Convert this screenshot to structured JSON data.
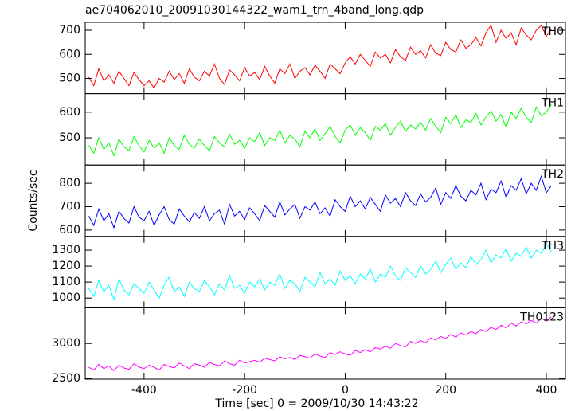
{
  "chart_data": {
    "type": "line",
    "title": "ae704062010_20091030144322_wam1_trn_4band_long.qdp",
    "xlabel": "Time [sec] 0 = 2009/10/30 14:43:22",
    "ylabel": "Counts/sec",
    "xlim": [
      -517,
      438
    ],
    "xticks": [
      -400,
      -200,
      0,
      200,
      400
    ],
    "x": [
      -510,
      -500,
      -490,
      -480,
      -470,
      -460,
      -450,
      -440,
      -430,
      -420,
      -410,
      -400,
      -390,
      -380,
      -370,
      -360,
      -350,
      -340,
      -330,
      -320,
      -310,
      -300,
      -290,
      -280,
      -270,
      -260,
      -250,
      -240,
      -230,
      -220,
      -210,
      -200,
      -190,
      -180,
      -170,
      -160,
      -150,
      -140,
      -130,
      -120,
      -110,
      -100,
      -90,
      -80,
      -70,
      -60,
      -50,
      -40,
      -30,
      -20,
      -10,
      0,
      10,
      20,
      30,
      40,
      50,
      60,
      70,
      80,
      90,
      100,
      110,
      120,
      130,
      140,
      150,
      160,
      170,
      180,
      190,
      200,
      210,
      220,
      230,
      240,
      250,
      260,
      270,
      280,
      290,
      300,
      310,
      320,
      330,
      340,
      350,
      360,
      370,
      380,
      390,
      400,
      410
    ],
    "series": [
      {
        "name": "TH0",
        "color": "#ff0000",
        "ylim": [
          437,
          733
        ],
        "yticks": [
          500,
          600,
          700
        ],
        "values": [
          505,
          470,
          540,
          490,
          515,
          480,
          530,
          500,
          470,
          525,
          495,
          470,
          490,
          460,
          500,
          485,
          530,
          495,
          520,
          480,
          540,
          505,
          490,
          530,
          510,
          560,
          500,
          475,
          535,
          515,
          490,
          545,
          510,
          525,
          495,
          550,
          510,
          480,
          540,
          520,
          560,
          500,
          530,
          545,
          515,
          555,
          530,
          500,
          560,
          540,
          520,
          565,
          590,
          560,
          600,
          575,
          550,
          610,
          585,
          600,
          565,
          620,
          590,
          575,
          630,
          600,
          615,
          585,
          640,
          605,
          595,
          650,
          620,
          610,
          660,
          625,
          640,
          670,
          635,
          690,
          720,
          650,
          700,
          665,
          690,
          640,
          710,
          680,
          660,
          700,
          720,
          675,
          705
        ]
      },
      {
        "name": "TH1",
        "color": "#00ff00",
        "ylim": [
          394,
          672
        ],
        "yticks": [
          500,
          600
        ],
        "values": [
          470,
          440,
          500,
          455,
          480,
          430,
          495,
          465,
          450,
          505,
          470,
          445,
          490,
          460,
          480,
          440,
          500,
          470,
          455,
          510,
          475,
          460,
          495,
          470,
          450,
          505,
          480,
          465,
          515,
          475,
          490,
          460,
          500,
          485,
          520,
          470,
          500,
          490,
          530,
          480,
          510,
          495,
          465,
          525,
          500,
          535,
          490,
          515,
          545,
          505,
          480,
          530,
          550,
          510,
          540,
          520,
          490,
          545,
          530,
          555,
          510,
          540,
          565,
          525,
          550,
          535,
          560,
          530,
          575,
          545,
          520,
          580,
          555,
          590,
          540,
          570,
          560,
          595,
          550,
          580,
          605,
          565,
          590,
          540,
          600,
          575,
          615,
          580,
          560,
          620,
          585,
          600,
          630
        ]
      },
      {
        "name": "TH2",
        "color": "#0000ff",
        "ylim": [
          573,
          878
        ],
        "yticks": [
          600,
          700,
          800
        ],
        "values": [
          660,
          620,
          690,
          640,
          670,
          610,
          680,
          650,
          630,
          700,
          655,
          640,
          680,
          620,
          665,
          700,
          645,
          625,
          690,
          660,
          635,
          675,
          650,
          700,
          640,
          670,
          685,
          625,
          710,
          660,
          680,
          645,
          695,
          670,
          640,
          705,
          680,
          655,
          720,
          665,
          690,
          710,
          650,
          700,
          685,
          720,
          670,
          695,
          660,
          730,
          700,
          680,
          745,
          700,
          725,
          690,
          740,
          710,
          680,
          750,
          715,
          735,
          700,
          760,
          725,
          705,
          755,
          720,
          740,
          780,
          710,
          760,
          735,
          790,
          745,
          725,
          770,
          750,
          800,
          730,
          775,
          760,
          810,
          740,
          790,
          770,
          820,
          755,
          800,
          770,
          830,
          760,
          790
        ]
      },
      {
        "name": "TH3",
        "color": "#00ffff",
        "ylim": [
          939,
          1386
        ],
        "yticks": [
          1000,
          1100,
          1200,
          1300
        ],
        "values": [
          1060,
          1010,
          1110,
          1040,
          1080,
          990,
          1120,
          1050,
          1020,
          1090,
          1060,
          1030,
          1100,
          1050,
          1000,
          1080,
          1130,
          1040,
          1070,
          1010,
          1100,
          1060,
          1040,
          1110,
          1070,
          1020,
          1090,
          1050,
          1140,
          1060,
          1080,
          1030,
          1100,
          1070,
          1120,
          1050,
          1100,
          1080,
          1150,
          1060,
          1110,
          1090,
          1040,
          1130,
          1100,
          1070,
          1160,
          1090,
          1120,
          1080,
          1170,
          1110,
          1140,
          1090,
          1150,
          1120,
          1180,
          1100,
          1150,
          1130,
          1200,
          1140,
          1110,
          1190,
          1160,
          1130,
          1200,
          1150,
          1180,
          1230,
          1160,
          1210,
          1250,
          1180,
          1220,
          1190,
          1260,
          1210,
          1240,
          1300,
          1220,
          1270,
          1250,
          1310,
          1230,
          1280,
          1260,
          1320,
          1250,
          1300,
          1280,
          1340,
          1290
        ]
      },
      {
        "name": "TH0123",
        "color": "#ff00ff",
        "ylim": [
          2489,
          3511
        ],
        "yticks": [
          2500,
          3000
        ],
        "values": [
          2660,
          2620,
          2700,
          2640,
          2680,
          2610,
          2690,
          2650,
          2630,
          2710,
          2660,
          2640,
          2690,
          2660,
          2620,
          2700,
          2670,
          2650,
          2720,
          2680,
          2640,
          2710,
          2690,
          2660,
          2730,
          2700,
          2680,
          2750,
          2710,
          2690,
          2760,
          2720,
          2740,
          2760,
          2730,
          2790,
          2770,
          2750,
          2810,
          2780,
          2800,
          2770,
          2830,
          2810,
          2790,
          2850,
          2820,
          2800,
          2870,
          2840,
          2880,
          2850,
          2830,
          2900,
          2870,
          2910,
          2880,
          2940,
          2920,
          2960,
          2930,
          3000,
          2970,
          2950,
          3030,
          3000,
          3040,
          3010,
          3080,
          3050,
          3100,
          3070,
          3130,
          3090,
          3150,
          3120,
          3170,
          3140,
          3200,
          3170,
          3230,
          3200,
          3260,
          3220,
          3290,
          3250,
          3310,
          3280,
          3330,
          3290,
          3360,
          3320,
          3380
        ]
      }
    ]
  }
}
